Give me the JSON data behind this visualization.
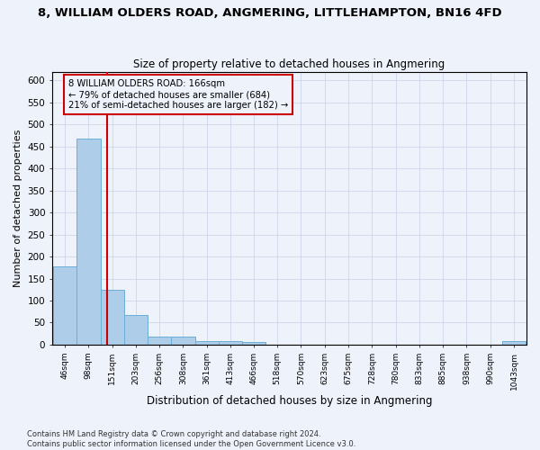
{
  "title": "8, WILLIAM OLDERS ROAD, ANGMERING, LITTLEHAMPTON, BN16 4FD",
  "subtitle": "Size of property relative to detached houses in Angmering",
  "xlabel": "Distribution of detached houses by size in Angmering",
  "ylabel": "Number of detached properties",
  "bin_edges": [
    46,
    98,
    151,
    203,
    256,
    308,
    361,
    413,
    466,
    518,
    570,
    623,
    675,
    728,
    780,
    833,
    885,
    938,
    990,
    1043,
    1095
  ],
  "bin_heights": [
    178,
    468,
    125,
    68,
    18,
    18,
    9,
    7,
    5,
    0,
    0,
    0,
    0,
    0,
    0,
    0,
    0,
    0,
    0,
    7
  ],
  "bar_color": "#aecde8",
  "bar_edgecolor": "#6aaed6",
  "property_size": 166,
  "property_line_color": "#cc0000",
  "annotation_text": "8 WILLIAM OLDERS ROAD: 166sqm\n← 79% of detached houses are smaller (684)\n21% of semi-detached houses are larger (182) →",
  "annotation_box_edgecolor": "#cc0000",
  "ylim": [
    0,
    620
  ],
  "yticks": [
    0,
    50,
    100,
    150,
    200,
    250,
    300,
    350,
    400,
    450,
    500,
    550,
    600
  ],
  "footer_line1": "Contains HM Land Registry data © Crown copyright and database right 2024.",
  "footer_line2": "Contains public sector information licensed under the Open Government Licence v3.0.",
  "background_color": "#eef2fb",
  "grid_color": "#c8d0e8"
}
